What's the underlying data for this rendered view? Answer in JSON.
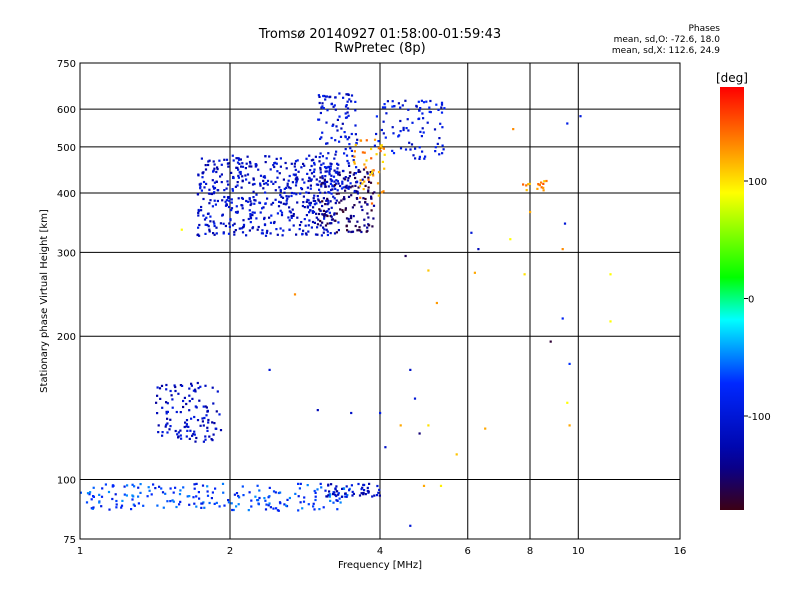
{
  "header": {
    "title": "Tromsø 20140927 01:58:00-01:59:43",
    "subtitle": "RwPretec (8p)",
    "stats_title": "Phases",
    "stats_o": "mean, sd,O: -72.6, 18.0",
    "stats_x": "mean, sd,X: 112.6, 24.9"
  },
  "colorbar": {
    "unit": "[deg]",
    "ticks": [
      "100",
      "0",
      "-100"
    ],
    "tick_values": [
      100,
      0,
      -100
    ],
    "range": [
      -180,
      180
    ]
  },
  "chart_data": {
    "type": "scatter",
    "xlabel": "Frequency [MHz]",
    "ylabel": "Stationary phase Virtual Height [km]",
    "x_scale": "log",
    "y_scale": "log",
    "xlim": [
      1,
      16
    ],
    "ylim": [
      75,
      750
    ],
    "x_ticks": [
      1,
      2,
      4,
      6,
      8,
      10,
      16
    ],
    "x_tick_labels": [
      "1",
      "2",
      "4",
      "6",
      "8",
      "10",
      "16"
    ],
    "y_ticks": [
      75,
      100,
      200,
      300,
      400,
      500,
      600,
      750
    ],
    "y_tick_labels": [
      "75",
      "100",
      "200",
      "300",
      "400",
      "500",
      "600",
      "750"
    ],
    "grid": true,
    "color_by": "phase [deg]",
    "clusters": [
      {
        "x": [
          1.72,
          3.3
        ],
        "y": [
          325,
          480
        ],
        "phase": -110,
        "n": 520
      },
      {
        "x": [
          3.0,
          3.9
        ],
        "y": [
          330,
          450
        ],
        "phase": -150,
        "n": 160
      },
      {
        "x": [
          3.0,
          3.6
        ],
        "y": [
          400,
          650
        ],
        "phase": -105,
        "n": 130
      },
      {
        "x": [
          3.5,
          4.1
        ],
        "y": [
          380,
          520
        ],
        "phase": 125,
        "n": 45
      },
      {
        "x": [
          3.9,
          5.4
        ],
        "y": [
          470,
          630
        ],
        "phase": -95,
        "n": 90
      },
      {
        "x": [
          1.42,
          1.92
        ],
        "y": [
          120,
          160
        ],
        "phase": -115,
        "n": 120
      },
      {
        "x": [
          1.0,
          3.5
        ],
        "y": [
          86,
          98
        ],
        "phase": -70,
        "n": 200
      },
      {
        "x": [
          3.1,
          4.0
        ],
        "y": [
          92,
          98
        ],
        "phase": -115,
        "n": 50
      },
      {
        "x": [
          7.6,
          8.8
        ],
        "y": [
          405,
          425
        ],
        "phase": 130,
        "n": 15
      }
    ],
    "points": [
      {
        "x": 7.4,
        "y": 545,
        "phase": 130
      },
      {
        "x": 8.5,
        "y": 410,
        "phase": 125
      },
      {
        "x": 9.5,
        "y": 560,
        "phase": -90
      },
      {
        "x": 10.1,
        "y": 580,
        "phase": -95
      },
      {
        "x": 6.1,
        "y": 330,
        "phase": -100
      },
      {
        "x": 6.3,
        "y": 305,
        "phase": -120
      },
      {
        "x": 6.2,
        "y": 272,
        "phase": 120
      },
      {
        "x": 7.8,
        "y": 270,
        "phase": 100
      },
      {
        "x": 8.8,
        "y": 195,
        "phase": -170
      },
      {
        "x": 9.3,
        "y": 218,
        "phase": -80
      },
      {
        "x": 9.6,
        "y": 175,
        "phase": -70
      },
      {
        "x": 11.6,
        "y": 270,
        "phase": 90
      },
      {
        "x": 11.6,
        "y": 215,
        "phase": 90
      },
      {
        "x": 2.7,
        "y": 245,
        "phase": 130
      },
      {
        "x": 1.6,
        "y": 335,
        "phase": 90
      },
      {
        "x": 4.5,
        "y": 295,
        "phase": -160
      },
      {
        "x": 5.0,
        "y": 275,
        "phase": 110
      },
      {
        "x": 5.2,
        "y": 235,
        "phase": 125
      },
      {
        "x": 4.6,
        "y": 170,
        "phase": -110
      },
      {
        "x": 4.7,
        "y": 148,
        "phase": -100
      },
      {
        "x": 4.1,
        "y": 117,
        "phase": -110
      },
      {
        "x": 4.4,
        "y": 130,
        "phase": 120
      },
      {
        "x": 4.8,
        "y": 125,
        "phase": -150
      },
      {
        "x": 5.0,
        "y": 130,
        "phase": 100
      },
      {
        "x": 5.7,
        "y": 113,
        "phase": 110
      },
      {
        "x": 6.5,
        "y": 128,
        "phase": 120
      },
      {
        "x": 9.6,
        "y": 130,
        "phase": 120
      },
      {
        "x": 9.5,
        "y": 145,
        "phase": 90
      },
      {
        "x": 3.5,
        "y": 138,
        "phase": -110
      },
      {
        "x": 4.0,
        "y": 138,
        "phase": -90
      },
      {
        "x": 3.0,
        "y": 140,
        "phase": -120
      },
      {
        "x": 2.4,
        "y": 170,
        "phase": -100
      },
      {
        "x": 4.9,
        "y": 97,
        "phase": 120
      },
      {
        "x": 5.3,
        "y": 97,
        "phase": 95
      },
      {
        "x": 4.6,
        "y": 80,
        "phase": -100
      },
      {
        "x": 9.4,
        "y": 345,
        "phase": -100
      },
      {
        "x": 9.3,
        "y": 305,
        "phase": 130
      },
      {
        "x": 8.0,
        "y": 365,
        "phase": 120
      },
      {
        "x": 7.3,
        "y": 320,
        "phase": 90
      }
    ]
  }
}
